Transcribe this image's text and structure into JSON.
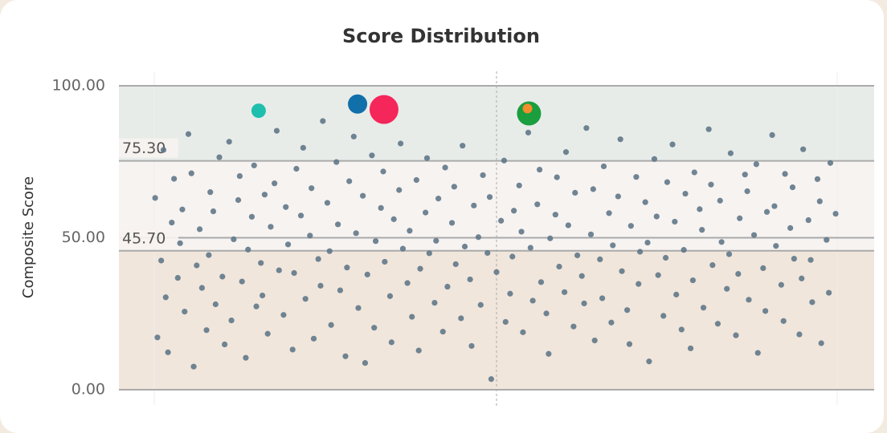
{
  "chart_data": {
    "type": "scatter",
    "title": "Score Distribution",
    "y_label": "Composite Score",
    "xlim": [
      0,
      100
    ],
    "ylim": [
      0,
      100
    ],
    "yticks": [
      {
        "value": 0,
        "label": "0.00"
      },
      {
        "value": 50,
        "label": "50.00"
      },
      {
        "value": 100,
        "label": "100.00"
      }
    ],
    "reference_lines": [
      {
        "value": 75.3,
        "label": "75.30"
      },
      {
        "value": 45.7,
        "label": "45.70"
      }
    ],
    "band_colors": [
      "#f1e6dc",
      "#f7f3f1",
      "#e8ece9"
    ],
    "x_reference_line": 50,
    "series": [
      {
        "color": "#617888",
        "x": [
          5.1,
          5.6,
          4.8,
          6.2,
          5.9,
          7.0,
          6.5,
          7.8,
          7.3,
          8.1,
          8.7,
          9.2,
          8.4,
          9.9,
          10.3,
          9.6,
          11.0,
          10.7,
          11.6,
          12.1,
          11.9,
          12.8,
          13.3,
          12.5,
          14.0,
          13.7,
          14.6,
          15.2,
          14.9,
          15.8,
          16.3,
          16.0,
          17.1,
          16.8,
          17.6,
          18.2,
          17.9,
          18.8,
          19.3,
          19.0,
          20.1,
          19.7,
          20.6,
          21.2,
          20.9,
          21.8,
          22.4,
          22.1,
          23.0,
          23.5,
          23.2,
          24.1,
          24.7,
          24.4,
          25.3,
          25.8,
          25.5,
          26.4,
          27.0,
          26.7,
          27.6,
          28.1,
          27.9,
          28.8,
          29.3,
          29.0,
          30.0,
          30.5,
          30.2,
          31.1,
          31.7,
          31.4,
          32.3,
          32.9,
          32.6,
          33.5,
          34.0,
          33.8,
          34.7,
          35.2,
          35.0,
          35.9,
          36.4,
          36.1,
          37.1,
          37.6,
          37.3,
          38.2,
          38.8,
          38.5,
          39.4,
          39.9,
          39.7,
          40.6,
          41.1,
          40.8,
          41.8,
          42.3,
          42.0,
          42.9,
          43.5,
          43.2,
          44.1,
          44.6,
          44.4,
          45.3,
          45.8,
          45.5,
          46.5,
          47.0,
          46.7,
          47.6,
          48.2,
          47.9,
          48.8,
          49.3,
          49.1,
          50.0,
          50.6,
          51.2,
          51.0,
          51.8,
          52.3,
          52.1,
          53.0,
          53.5,
          53.3,
          54.2,
          54.8,
          54.5,
          55.4,
          55.9,
          55.7,
          56.6,
          57.1,
          56.9,
          57.8,
          58.3,
          58.0,
          59.0,
          59.5,
          59.2,
          60.2,
          60.7,
          60.4,
          61.3,
          61.9,
          61.6,
          62.5,
          63.0,
          62.8,
          63.7,
          64.2,
          64.0,
          64.9,
          65.4,
          65.2,
          66.1,
          66.6,
          66.4,
          67.3,
          67.8,
          67.6,
          68.5,
          69.0,
          68.8,
          69.7,
          70.2,
          70.0,
          70.9,
          71.4,
          71.2,
          72.1,
          72.6,
          72.4,
          73.3,
          73.8,
          73.6,
          74.5,
          75.0,
          74.8,
          75.7,
          76.2,
          76.0,
          76.9,
          77.4,
          77.2,
          78.1,
          78.6,
          78.4,
          79.3,
          79.8,
          79.6,
          80.5,
          81.0,
          80.8,
          81.7,
          82.2,
          82.0,
          82.9,
          83.4,
          83.2,
          84.1,
          84.6,
          84.4,
          85.3,
          85.8,
          85.6,
          86.5,
          87.0,
          86.8,
          87.7,
          88.2,
          88.0,
          88.9,
          89.4,
          89.2,
          90.1,
          90.6,
          90.4,
          91.3,
          91.8,
          91.6,
          92.5,
          93.0,
          92.8,
          93.7,
          94.2,
          94.0,
          94.9
        ],
        "values": [
          17.2,
          42.5,
          63.1,
          30.4,
          78.9,
          55.0,
          12.3,
          36.8,
          69.4,
          48.2,
          25.7,
          84.1,
          59.3,
          7.6,
          40.9,
          71.2,
          33.5,
          52.8,
          19.6,
          65.0,
          44.3,
          28.1,
          76.5,
          58.7,
          14.9,
          37.2,
          81.6,
          49.5,
          22.8,
          62.4,
          35.6,
          70.3,
          46.1,
          10.5,
          56.9,
          27.4,
          73.8,
          41.7,
          64.2,
          31.0,
          53.6,
          18.4,
          67.9,
          39.3,
          85.2,
          24.6,
          47.8,
          60.1,
          13.2,
          72.7,
          38.4,
          57.3,
          29.9,
          79.6,
          50.7,
          16.8,
          66.3,
          43.0,
          88.4,
          34.2,
          61.5,
          21.3,
          45.6,
          74.9,
          32.7,
          54.4,
          11.0,
          68.6,
          40.2,
          83.3,
          26.9,
          51.5,
          63.8,
          37.9,
          8.8,
          77.1,
          48.9,
          20.4,
          59.8,
          42.1,
          71.8,
          30.8,
          56.1,
          15.6,
          65.7,
          46.4,
          81.0,
          35.1,
          24.0,
          52.3,
          69.0,
          39.8,
          12.9,
          58.3,
          44.9,
          76.2,
          28.6,
          62.9,
          49.0,
          19.1,
          33.9,
          73.1,
          54.9,
          41.3,
          66.8,
          23.5,
          47.1,
          80.3,
          36.3,
          60.6,
          14.4,
          50.2,
          70.6,
          27.9,
          45.0,
          3.5,
          63.4,
          38.7,
          55.6,
          22.3,
          75.4,
          31.6,
          58.9,
          43.8,
          67.2,
          18.9,
          52.0,
          84.6,
          29.3,
          46.7,
          61.0,
          35.4,
          72.4,
          25.1,
          49.8,
          11.8,
          57.6,
          40.5,
          69.9,
          32.1,
          54.1,
          78.2,
          20.8,
          44.2,
          64.8,
          37.4,
          86.1,
          28.4,
          51.1,
          16.2,
          66.0,
          42.9,
          73.5,
          30.1,
          58.1,
          47.5,
          22.1,
          63.6,
          39.0,
          82.4,
          26.2,
          53.9,
          15.0,
          70.0,
          45.4,
          34.8,
          61.7,
          9.3,
          48.4,
          75.9,
          37.7,
          57.0,
          24.3,
          68.3,
          43.4,
          80.7,
          31.3,
          55.3,
          19.8,
          64.5,
          46.0,
          13.6,
          71.5,
          36.0,
          59.4,
          27.0,
          52.6,
          85.7,
          41.0,
          67.5,
          21.7,
          48.6,
          62.2,
          33.2,
          77.8,
          44.6,
          17.9,
          56.4,
          38.1,
          70.8,
          29.6,
          65.3,
          50.9,
          12.1,
          74.2,
          40.0,
          58.5,
          25.9,
          83.8,
          47.3,
          60.4,
          34.5,
          71.0,
          22.6,
          53.2,
          43.1,
          66.6,
          18.2,
          79.1,
          36.6,
          55.8,
          28.8,
          42.7,
          69.3,
          15.3,
          62.0,
          49.3,
          74.6,
          31.9,
          57.9
        ]
      },
      {
        "color": "#1fbfae",
        "x": [
          18.5
        ],
        "values": [
          91.8
        ]
      },
      {
        "color": "#1170aa",
        "x": [
          31.6
        ],
        "values": [
          94.0
        ]
      },
      {
        "color": "#f5275a",
        "x": [
          35.1
        ],
        "values": [
          92.2
        ]
      },
      {
        "color": "#1a9e3e",
        "x": [
          54.3
        ],
        "values": [
          90.9
        ]
      },
      {
        "color": "#f28e2b",
        "x": [
          54.1
        ],
        "values": [
          92.5
        ]
      }
    ]
  }
}
